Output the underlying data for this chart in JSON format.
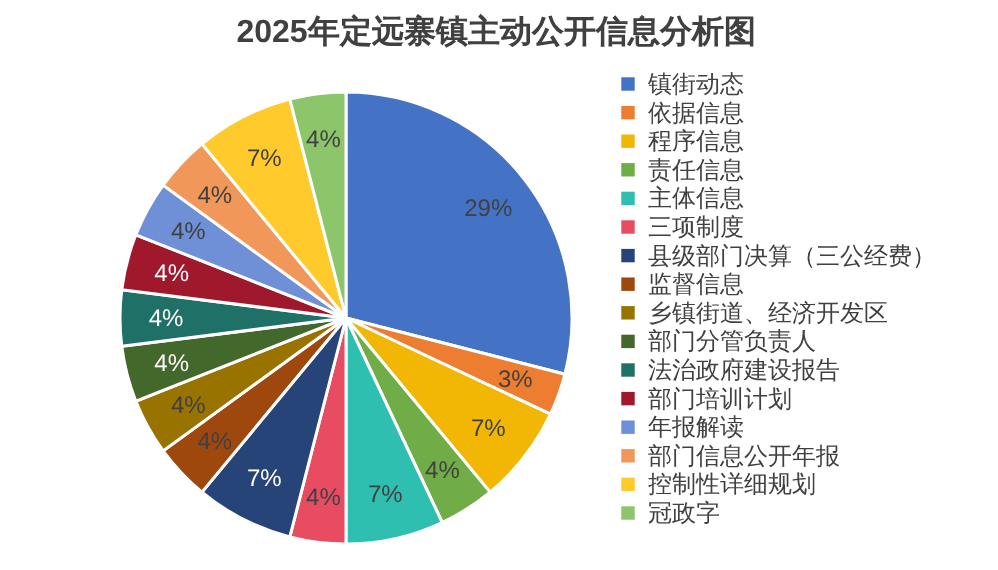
{
  "chart_data": {
    "type": "pie",
    "title": "2025年定远寨镇主动公开信息分析图",
    "categories": [
      "镇街动态",
      "依据信息",
      "程序信息",
      "责任信息",
      "主体信息",
      "三项制度",
      "县级部门决算（三公经费）",
      "监督信息",
      "乡镇街道、经济开发区",
      "部门分管负责人",
      "法治政府建设报告",
      "部门培训计划",
      "年报解读",
      "部门信息公开年报",
      "控制性详细规划",
      "冠政字"
    ],
    "values": [
      29,
      3,
      7,
      4,
      7,
      4,
      7,
      4,
      4,
      4,
      4,
      4,
      4,
      4,
      7,
      4
    ],
    "value_labels": [
      "29%",
      "3%",
      "7%",
      "4%",
      "7%",
      "4%",
      "7%",
      "4%",
      "4%",
      "4%",
      "4%",
      "4%",
      "4%",
      "4%",
      "7%",
      "4%"
    ],
    "colors": [
      "#4472c4",
      "#ed7d31",
      "#f2b705",
      "#70ad47",
      "#2fbfb0",
      "#e84c63",
      "#264478",
      "#9e480e",
      "#997300",
      "#43682b",
      "#1f7067",
      "#a0182b",
      "#6f8fd6",
      "#f1975a",
      "#ffca2c",
      "#8cc56a"
    ],
    "legend": "right"
  }
}
